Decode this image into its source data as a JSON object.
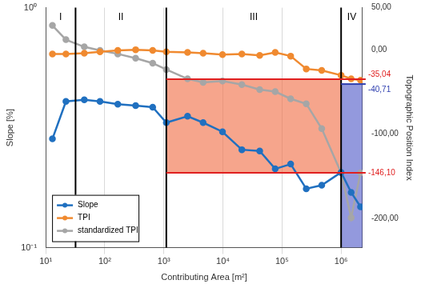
{
  "chart_data": {
    "type": "line",
    "x_label": "Contributing Area [m²]",
    "y_label": "Slope [%]",
    "y2_label": "Topographic Position Index",
    "log": true,
    "grid": true,
    "legend": "lower left",
    "marker": "circle",
    "x": [
      13,
      22,
      45,
      83,
      166,
      333,
      647,
      1100,
      2520,
      4620,
      9830,
      20900,
      41900,
      76700,
      140000,
      257000,
      470000,
      1000000,
      1480000,
      2130000
    ],
    "xlim": [
      10,
      2300000
    ],
    "xticks": [
      {
        "value": 10,
        "label": "10¹"
      },
      {
        "value": 100,
        "label": "10²"
      },
      {
        "value": 1000,
        "label": "10³"
      },
      {
        "value": 10000,
        "label": "10⁴"
      },
      {
        "value": 100000,
        "label": "10⁵"
      },
      {
        "value": 1000000,
        "label": "10⁶"
      }
    ],
    "ylim": [
      0.1,
      1
    ],
    "yticks": [
      {
        "value": 0.1,
        "label": "10⁻¹"
      },
      {
        "value": 1,
        "label": "10⁰"
      }
    ],
    "y2lim": [
      -235,
      50
    ],
    "y2ticks": [
      {
        "value": 50,
        "label": "50,00"
      },
      {
        "value": 0,
        "label": "0,00"
      },
      {
        "value": -100,
        "label": "-100,00"
      },
      {
        "value": -200,
        "label": "-200,00"
      }
    ],
    "series": [
      {
        "name": "Slope",
        "color": "#2070c0",
        "values": [
          0.284,
          0.407,
          0.413,
          0.407,
          0.396,
          0.391,
          0.385,
          0.332,
          0.353,
          0.332,
          0.304,
          0.256,
          0.253,
          0.213,
          0.223,
          0.176,
          0.182,
          0.206,
          0.17,
          0.148
        ]
      },
      {
        "name": "TPI",
        "color": "#f08a30",
        "axis": "y2",
        "values": [
          -5.0,
          -5.0,
          -4.1,
          -2.4,
          -0.7,
          0.1,
          -0.7,
          -2.4,
          -3.2,
          -4.1,
          -5.8,
          -4.9,
          -6.6,
          -3.2,
          -7.5,
          -22.7,
          -24.4,
          -30.3,
          -34.5,
          -36.2
        ]
      },
      {
        "name": "standardized TPI",
        "color": "#a6a6a6",
        "axis": "y2",
        "values": [
          28.9,
          12.0,
          3.5,
          -0.7,
          -4.9,
          -10.0,
          -15.9,
          -23.5,
          -34.5,
          -38.7,
          -37.1,
          -41.3,
          -47.2,
          -49.7,
          -58.2,
          -64.1,
          -93.7,
          -146.1,
          -199.4,
          -146.1
        ]
      }
    ],
    "regions": {
      "labels": [
        "I",
        "II",
        "III",
        "IV"
      ],
      "boundaries": [
        32,
        1100,
        1000000
      ]
    },
    "shaded_regions": [
      {
        "x": [
          1100,
          1000000
        ],
        "y2": [
          -146.1,
          -35.04
        ],
        "color": "rgba(240,110,70,0.62)"
      },
      {
        "x": [
          1000000,
          2300000
        ],
        "y2": [
          -235,
          -40.71
        ],
        "color": "rgba(80,90,200,0.62)"
      }
    ],
    "reference_lines": [
      {
        "value": -35.04,
        "label": "-35,04",
        "color": "#e02020",
        "x_from": 1100
      },
      {
        "value": -40.71,
        "label": "-40,71",
        "color": "#3040b0",
        "x_from": 1000000
      },
      {
        "value": -146.1,
        "label": "-146,10",
        "color": "#e02020",
        "x_from": 1100
      }
    ]
  }
}
